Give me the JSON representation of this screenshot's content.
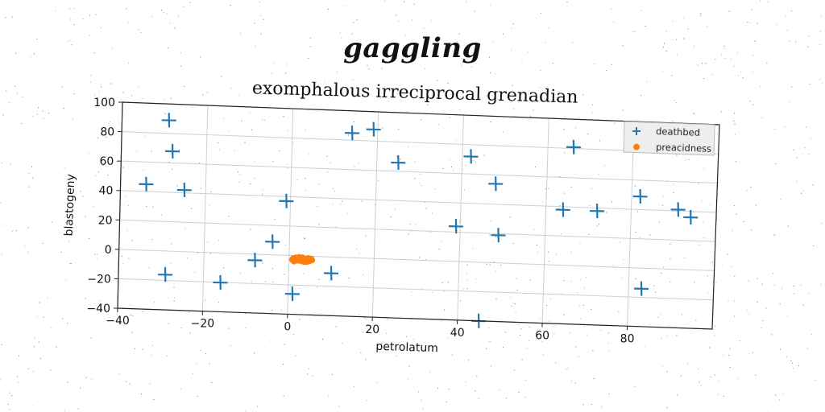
{
  "heading": "gaggling",
  "chart_data": {
    "type": "scatter",
    "title": "exomphalous irreciprocal grenadian",
    "xlabel": "petrolatum",
    "ylabel": "blastogeny",
    "xlim": [
      -40,
      100
    ],
    "ylim": [
      -40,
      100
    ],
    "xticks": [
      -40,
      -20,
      0,
      20,
      40,
      60,
      80
    ],
    "yticks": [
      -40,
      -20,
      0,
      20,
      40,
      60,
      80,
      100
    ],
    "grid": true,
    "legend_position": "top-right",
    "series": [
      {
        "name": "deathbed",
        "marker": "plus",
        "color": "#1f77b4",
        "points": [
          [
            -29,
            89
          ],
          [
            -28,
            68
          ],
          [
            -34,
            45
          ],
          [
            -25,
            42
          ],
          [
            -29,
            -16
          ],
          [
            -16,
            -20
          ],
          [
            -8,
            -4
          ],
          [
            -4,
            9
          ],
          [
            -1,
            37
          ],
          [
            1,
            -26
          ],
          [
            10,
            -11
          ],
          [
            14,
            85
          ],
          [
            19,
            88
          ],
          [
            25,
            66
          ],
          [
            39,
            24
          ],
          [
            42,
            72
          ],
          [
            45,
            -40
          ],
          [
            48,
            54
          ],
          [
            49,
            19
          ],
          [
            64,
            38
          ],
          [
            66,
            81
          ],
          [
            72,
            38
          ],
          [
            82,
            49
          ],
          [
            83,
            -14
          ],
          [
            91,
            41
          ],
          [
            94,
            36
          ]
        ]
      },
      {
        "name": "preacidness",
        "marker": "circle",
        "color": "#ff7f0e",
        "points": [
          [
            1.0,
            -2.0
          ],
          [
            1.5,
            -3.0
          ],
          [
            2.0,
            -1.5
          ],
          [
            2.5,
            -2.5
          ],
          [
            3.0,
            -3.5
          ],
          [
            3.5,
            -2.0
          ],
          [
            4.0,
            -3.0
          ],
          [
            4.5,
            -1.5
          ],
          [
            5.0,
            -2.5
          ],
          [
            1.2,
            -3.8
          ],
          [
            2.2,
            -3.2
          ],
          [
            3.2,
            -1.2
          ],
          [
            4.2,
            -3.8
          ],
          [
            5.2,
            -1.8
          ],
          [
            1.8,
            -2.2
          ],
          [
            2.8,
            -2.8
          ],
          [
            3.8,
            -2.4
          ],
          [
            4.8,
            -3.3
          ],
          [
            0.8,
            -2.8
          ],
          [
            5.4,
            -2.6
          ],
          [
            2.4,
            -1.0
          ],
          [
            3.6,
            -3.9
          ],
          [
            4.4,
            -2.2
          ],
          [
            1.6,
            -1.4
          ]
        ]
      }
    ]
  }
}
